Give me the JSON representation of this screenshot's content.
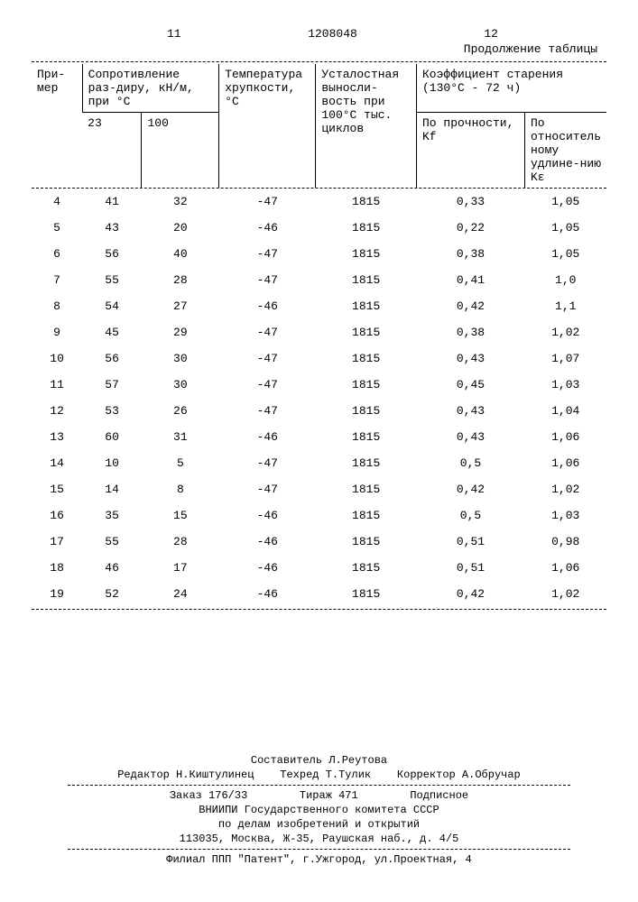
{
  "header": {
    "left_num": "11",
    "doc_num": "1208048",
    "right_num": "12",
    "continuation": "Продолжение таблицы"
  },
  "table": {
    "cols": {
      "c1": "При-мер",
      "c2": "Сопротивление раз-диру, кН/м, при °С",
      "c2a": "23",
      "c2b": "100",
      "c3": "Температура хрупкости, °С",
      "c4": "Усталостная выносли-вость при 100°С тыс. циклов",
      "c5": "Коэффициент старения (130°С - 72 ч)",
      "c5a": "По прочности, Kf",
      "c5b": "По относитель ному удлине-нию Kε"
    },
    "rows": [
      [
        "4",
        "41",
        "32",
        "-47",
        "1815",
        "0,33",
        "1,05"
      ],
      [
        "5",
        "43",
        "20",
        "-46",
        "1815",
        "0,22",
        "1,05"
      ],
      [
        "6",
        "56",
        "40",
        "-47",
        "1815",
        "0,38",
        "1,05"
      ],
      [
        "7",
        "55",
        "28",
        "-47",
        "1815",
        "0,41",
        "1,0"
      ],
      [
        "8",
        "54",
        "27",
        "-46",
        "1815",
        "0,42",
        "1,1"
      ],
      [
        "9",
        "45",
        "29",
        "-47",
        "1815",
        "0,38",
        "1,02"
      ],
      [
        "10",
        "56",
        "30",
        "-47",
        "1815",
        "0,43",
        "1,07"
      ],
      [
        "11",
        "57",
        "30",
        "-47",
        "1815",
        "0,45",
        "1,03"
      ],
      [
        "12",
        "53",
        "26",
        "-47",
        "1815",
        "0,43",
        "1,04"
      ],
      [
        "13",
        "60",
        "31",
        "-46",
        "1815",
        "0,43",
        "1,06"
      ],
      [
        "14",
        "10",
        "5",
        "-47",
        "1815",
        "0,5",
        "1,06"
      ],
      [
        "15",
        "14",
        "8",
        "-47",
        "1815",
        "0,42",
        "1,02"
      ],
      [
        "16",
        "35",
        "15",
        "-46",
        "1815",
        "0,5",
        "1,03"
      ],
      [
        "17",
        "55",
        "28",
        "-46",
        "1815",
        "0,51",
        "0,98"
      ],
      [
        "18",
        "46",
        "17",
        "-46",
        "1815",
        "0,51",
        "1,06"
      ],
      [
        "19",
        "52",
        "24",
        "-46",
        "1815",
        "0,42",
        "1,02"
      ]
    ]
  },
  "footer": {
    "compiler": "Составитель Л.Реутова",
    "editor": "Редактор Н.Киштулинец",
    "techred": "Техред Т.Тулик",
    "corrector": "Корректор А.Обручар",
    "order": "Заказ 176/33",
    "tirazh": "Тираж 471",
    "subscribe": "Подписное",
    "org1": "ВНИИПИ Государственного комитета СССР",
    "org2": "по делам изобретений и открытий",
    "addr1": "113035, Москва, Ж-35, Раушская наб., д. 4/5",
    "branch": "Филиал ППП \"Патент\", г.Ужгород, ул.Проектная, 4"
  }
}
